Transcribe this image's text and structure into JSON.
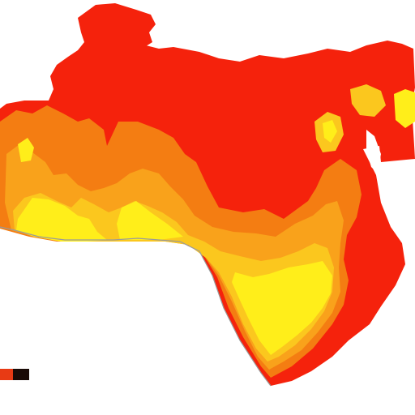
{
  "map": {
    "colors": {
      "base": "#f5220c",
      "dark_orange": "#f47d12",
      "orange": "#f9a21b",
      "amber": "#fbc71e",
      "yellow": "#ffee1a",
      "outline": "#9a9a9a"
    }
  },
  "legend": {
    "title": "",
    "items": [
      {
        "name": "legend-swatch-red",
        "color": "#e83a14"
      },
      {
        "name": "legend-swatch-black",
        "color": "#1a0a06"
      }
    ],
    "label": "",
    "footer": ""
  }
}
